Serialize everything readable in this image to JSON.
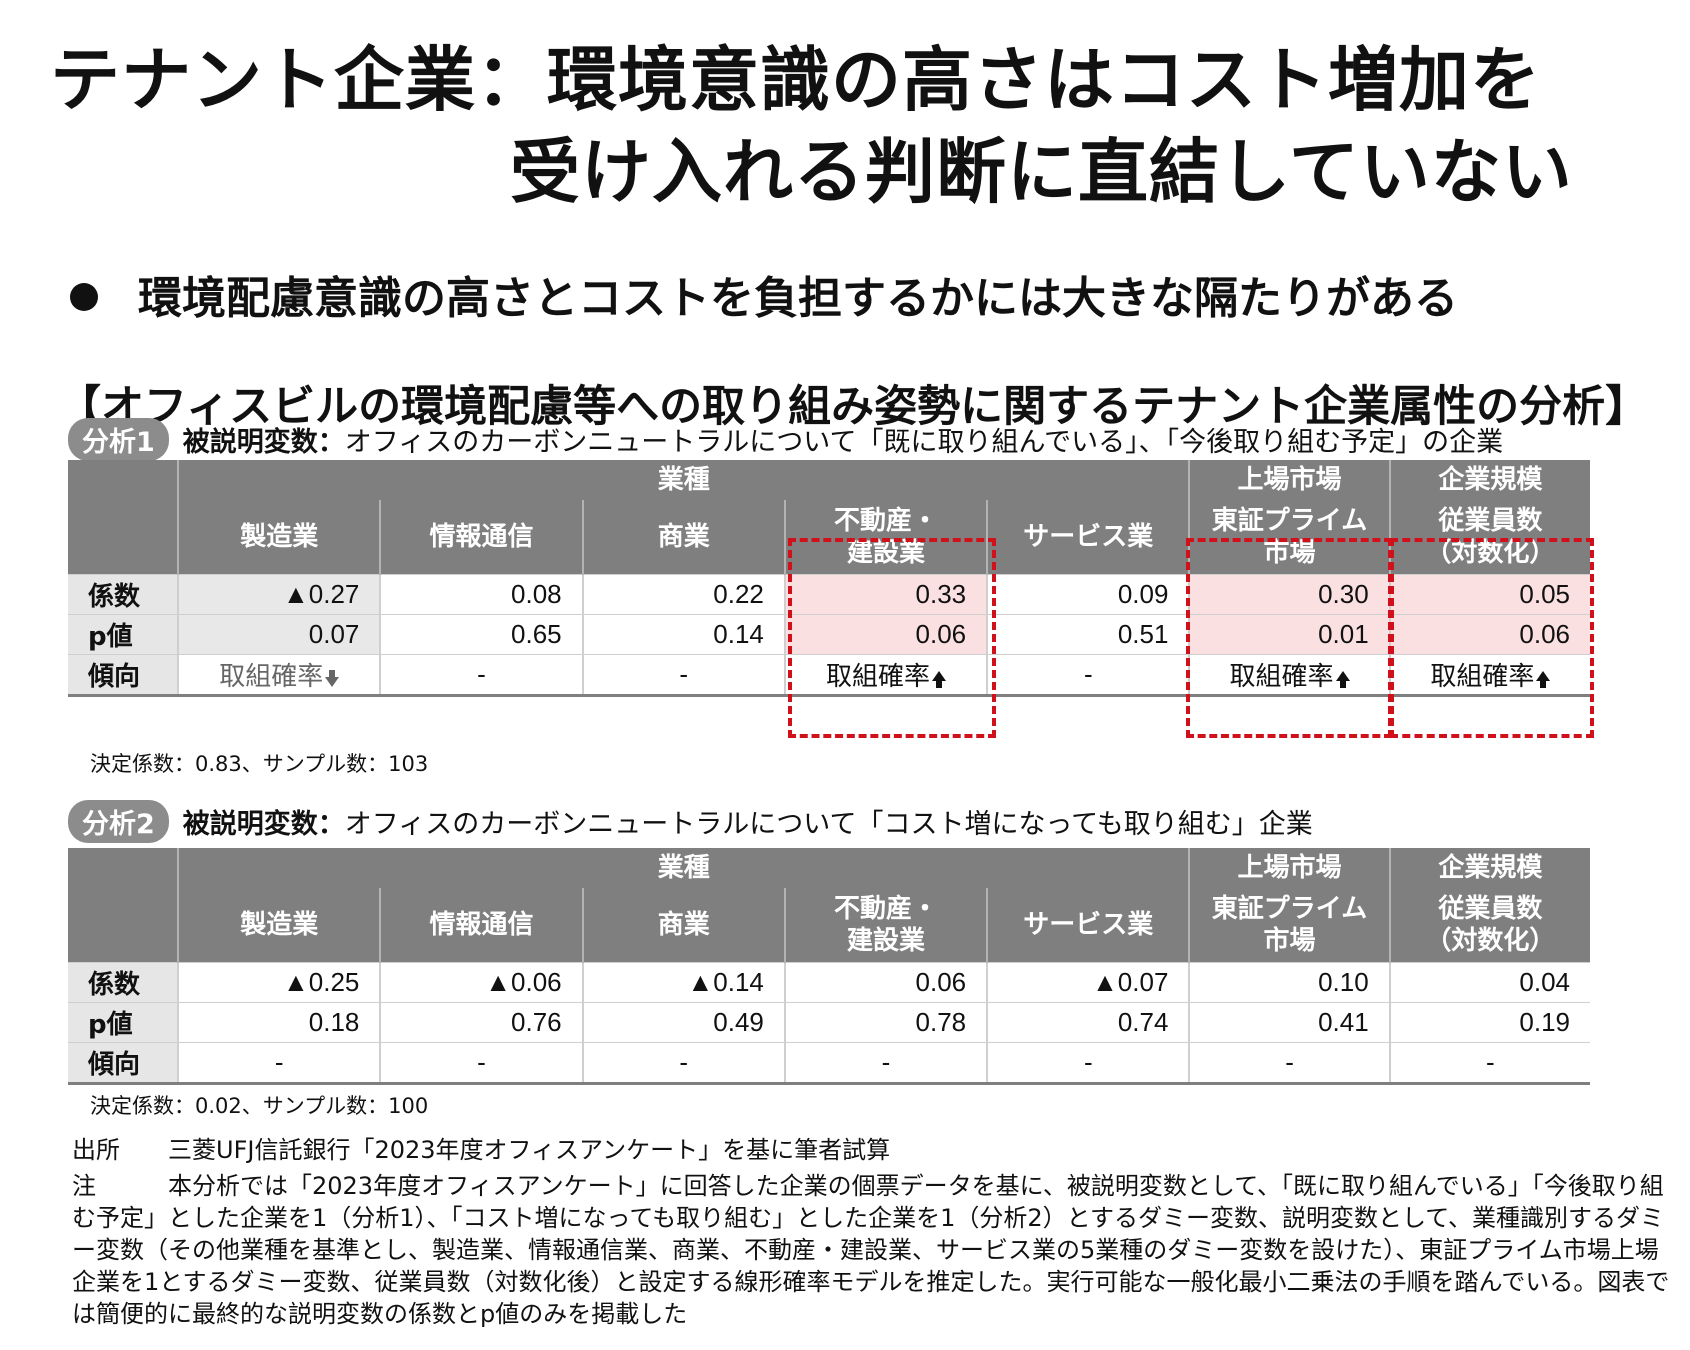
{
  "title": {
    "line1": "テナント企業：環境意識の高さはコスト増加を",
    "line2": "受け入れる判断に直結していない"
  },
  "bullet": "環境配慮意識の高さとコストを負担するかには大きな隔たりがある",
  "section_title": "【オフィスビルの環境配慮等への取り組み姿勢に関するテナント企業属性の分析】",
  "groups": {
    "industry": "業種",
    "market": "上場市場",
    "size": "企業規模"
  },
  "columns": [
    "製造業",
    "情報通信",
    "商業",
    "不動産・\n建設業",
    "サービス業",
    "東証プライム\n市場",
    "従業員数\n（対数化）"
  ],
  "row_labels": {
    "coef": "係数",
    "pval": "p値",
    "trend": "傾向"
  },
  "analysis1": {
    "pill": "分析1",
    "dep_label": "被説明変数：",
    "dep_text": "オフィスのカーボンニュートラルについて「既に取り組んでいる」、「今後取り組む予定」の企業",
    "coef": [
      "▲0.27",
      "0.08",
      "0.22",
      "0.33",
      "0.09",
      "0.30",
      "0.05"
    ],
    "pval": [
      "0.07",
      "0.65",
      "0.14",
      "0.06",
      "0.51",
      "0.01",
      "0.06"
    ],
    "trend": [
      "取組確率",
      "-",
      "-",
      "取組確率",
      "-",
      "取組確率",
      "取組確率"
    ],
    "stats": "決定係数：0.83、サンプル数：103"
  },
  "analysis2": {
    "pill": "分析2",
    "dep_label": "被説明変数：",
    "dep_text": "オフィスのカーボンニュートラルについて「コスト増になっても取り組む」企業",
    "coef": [
      "▲0.25",
      "▲0.06",
      "▲0.14",
      "0.06",
      "▲0.07",
      "0.10",
      "0.04"
    ],
    "pval": [
      "0.18",
      "0.76",
      "0.49",
      "0.78",
      "0.74",
      "0.41",
      "0.19"
    ],
    "trend": [
      "-",
      "-",
      "-",
      "-",
      "-",
      "-",
      "-"
    ],
    "stats": "決定係数：0.02、サンプル数：100"
  },
  "source": {
    "label": "出所",
    "text": "三菱UFJ信託銀行「2023年度オフィスアンケート」を基に筆者試算"
  },
  "note": {
    "label": "注",
    "text": "本分析では「2023年度オフィスアンケート」に回答した企業の個票データを基に、被説明変数として、「既に取り組んでいる」「今後取り組む予定」とした企業を1（分析1）、「コスト増になっても取り組む」とした企業を1（分析2）とするダミー変数、説明変数として、業種識別するダミー変数（その他業種を基準とし、製造業、情報通信業、商業、不動産・建設業、サービス業の5業種のダミー変数を設けた）、東証プライム市場上場企業を1とするダミー変数、従業員数（対数化後）と設定する線形確率モデルを推定した。実行可能な一般化最小二乗法の手順を踏んでいる。図表では簡便的に最終的な説明変数の係数とp値のみを掲載した"
  },
  "colors": {
    "header_bg": "#7f7f7f",
    "highlight_bg": "#fbe0e1",
    "highlight_border": "#d0111b",
    "pill_bg": "#8c8c8c"
  }
}
